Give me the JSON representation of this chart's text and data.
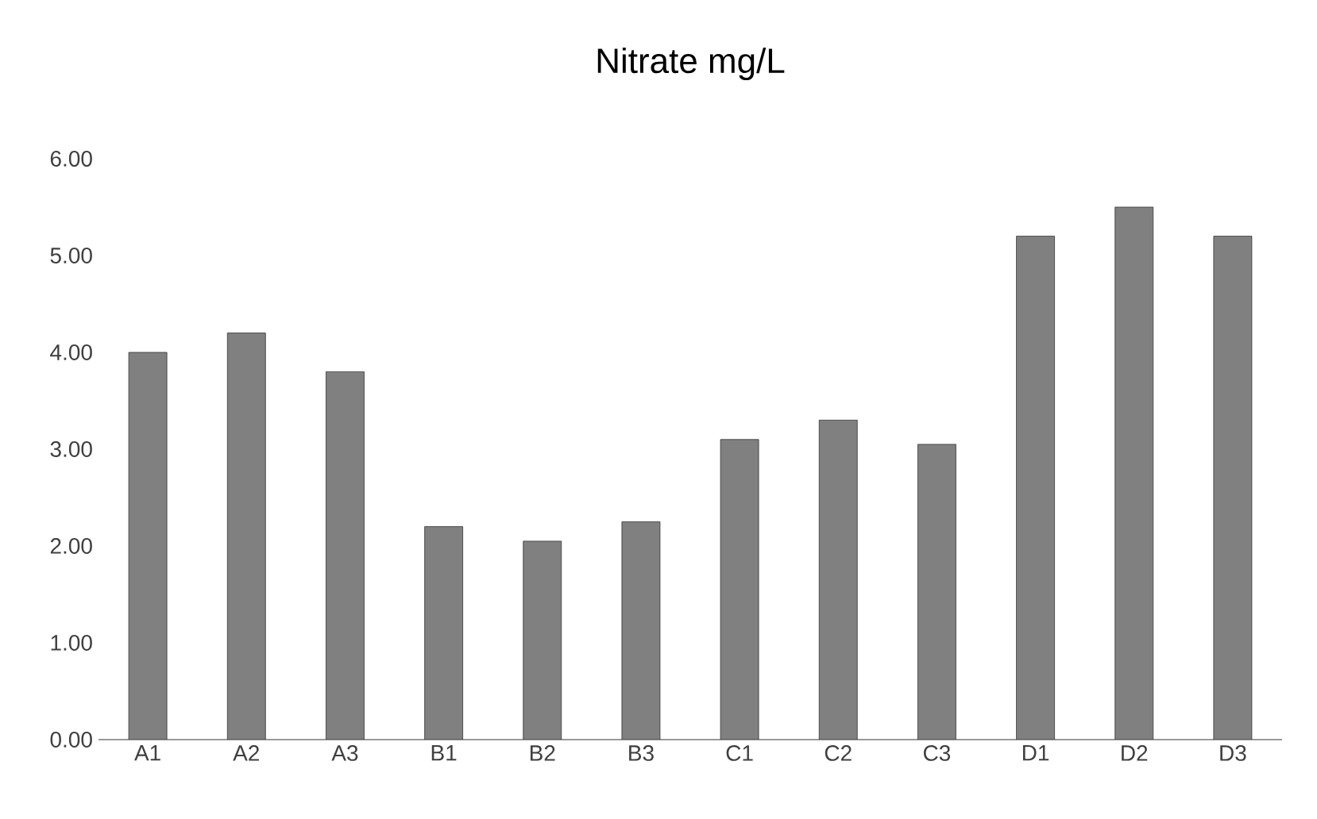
{
  "chart_data": {
    "type": "bar",
    "title": "Nitrate mg/L",
    "categories": [
      "A1",
      "A2",
      "A3",
      "B1",
      "B2",
      "B3",
      "C1",
      "C2",
      "C3",
      "D1",
      "D2",
      "D3"
    ],
    "values": [
      4.0,
      4.2,
      3.8,
      2.2,
      2.05,
      2.25,
      3.1,
      3.3,
      3.05,
      5.2,
      5.5,
      5.2
    ],
    "color": "#808080",
    "ylim": [
      0,
      6
    ],
    "yticks": [
      {
        "value": 0,
        "label": "0.00"
      },
      {
        "value": 1,
        "label": "1.00"
      },
      {
        "value": 2,
        "label": "2.00"
      },
      {
        "value": 3,
        "label": "3.00"
      },
      {
        "value": 4,
        "label": "4.00"
      },
      {
        "value": 5,
        "label": "5.00"
      },
      {
        "value": 6,
        "label": "6.00"
      }
    ],
    "grid": false
  }
}
